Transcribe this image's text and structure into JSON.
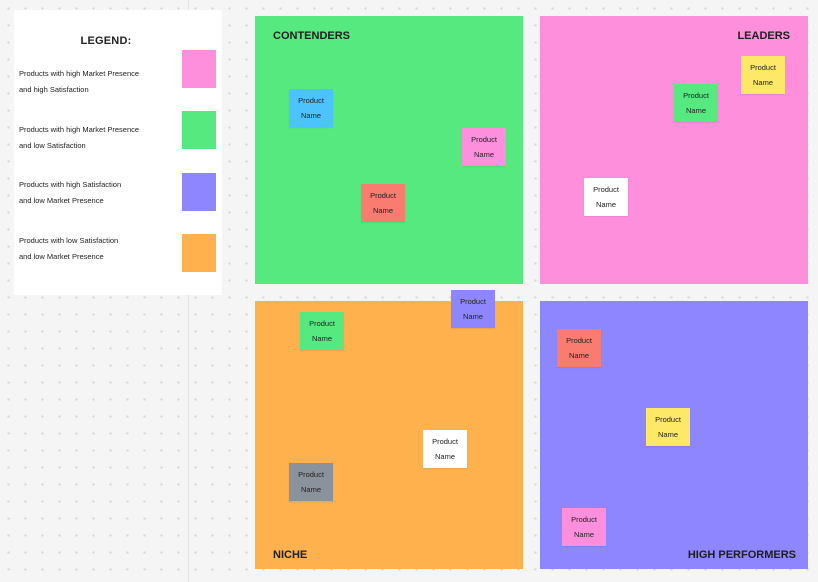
{
  "colors": {
    "pink": "#fd8fdd",
    "green": "#55e97f",
    "purple": "#8e86fe",
    "orange": "#ffb14d",
    "red": "#fa7b70",
    "blue": "#4cc3fe",
    "yellow": "#fde868",
    "white": "#ffffff",
    "gray": "#8a929b"
  },
  "legend": {
    "title": "LEGEND:",
    "items": [
      {
        "line1": "Products with high Market Presence",
        "line2": "and high Satisfaction",
        "color": "#fd8fdd"
      },
      {
        "line1": "Products with high Market Presence",
        "line2": "and low Satisfaction",
        "color": "#55e97f"
      },
      {
        "line1": "Products with high Satisfaction",
        "line2": "and low Market Presence",
        "color": "#8e86fe"
      },
      {
        "line1": "Products with low Satisfaction",
        "line2": "and low Market Presence",
        "color": "#ffb14d"
      }
    ]
  },
  "quadrants": {
    "contenders": "CONTENDERS",
    "leaders": "LEADERS",
    "niche": "NICHE",
    "high_performers": "HIGH PERFORMERS"
  },
  "notes": [
    {
      "line1": "Product",
      "line2": "Name",
      "color": "#4cc3fe",
      "label": "blue"
    },
    {
      "line1": "Product",
      "line2": "Name",
      "color": "#fd8fdd",
      "label": "pink"
    },
    {
      "line1": "Product",
      "line2": "Name",
      "color": "#fa7b70",
      "label": "red"
    },
    {
      "line1": "Product",
      "line2": "Name",
      "color": "#fde868",
      "label": "yellow"
    },
    {
      "line1": "Product",
      "line2": "Name",
      "color": "#55e97f",
      "label": "green"
    },
    {
      "line1": "Product",
      "line2": "Name",
      "color": "#ffffff",
      "label": "white"
    },
    {
      "line1": "Product",
      "line2": "Name",
      "color": "#8e86fe",
      "label": "purple"
    },
    {
      "line1": "Product",
      "line2": "Name",
      "color": "#55e97f",
      "label": "green"
    },
    {
      "line1": "Product",
      "line2": "Name",
      "color": "#ffffff",
      "label": "white"
    },
    {
      "line1": "Product",
      "line2": "Name",
      "color": "#8a929b",
      "label": "gray"
    },
    {
      "line1": "Product",
      "line2": "Name",
      "color": "#fa7b70",
      "label": "red"
    },
    {
      "line1": "Product",
      "line2": "Name",
      "color": "#fde868",
      "label": "yellow"
    },
    {
      "line1": "Product",
      "line2": "Name",
      "color": "#fd8fdd",
      "label": "pink"
    }
  ]
}
